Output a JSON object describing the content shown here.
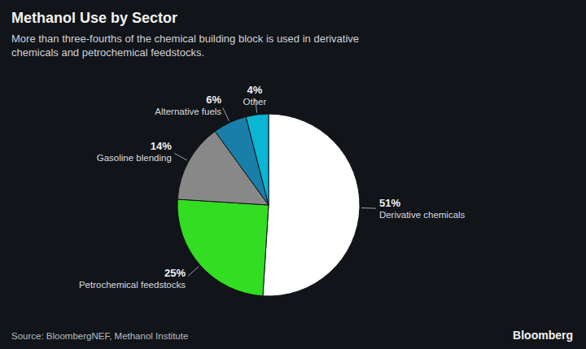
{
  "chart_data": {
    "type": "pie",
    "title": "Methanol Use by Sector",
    "subtitle": "More than three-fourths of the chemical building block is used in derivative\nchemicals and petrochemical feedstocks.",
    "categories": [
      "Derivative chemicals",
      "Petrochemical feedstocks",
      "Gasoline blending",
      "Alternative fuels",
      "Other"
    ],
    "values": [
      51,
      25,
      14,
      6,
      4
    ],
    "value_labels": [
      "51%",
      "25%",
      "14%",
      "6%",
      "4%"
    ],
    "colors": [
      "#ffffff",
      "#33dd22",
      "#888888",
      "#1a7fa8",
      "#0bb5d4"
    ],
    "data_labels": true,
    "source": "Source: BloombergNEF, Methanol Institute",
    "annotations": [
      "Bloomberg"
    ]
  }
}
